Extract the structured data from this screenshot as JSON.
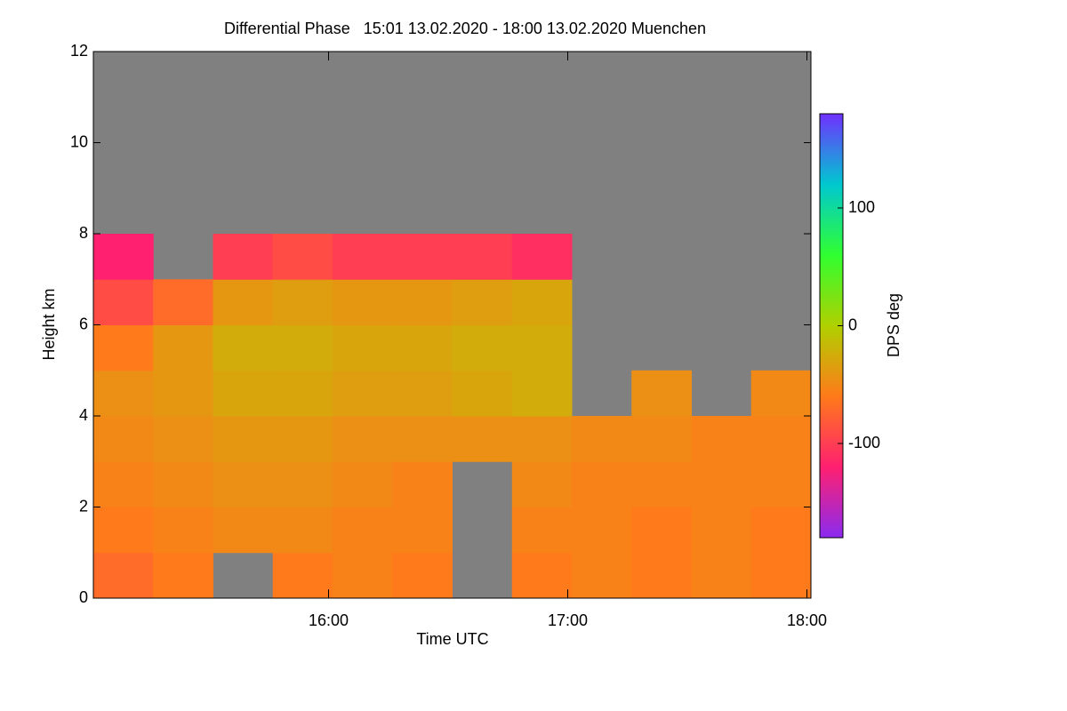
{
  "chart_data": {
    "type": "heatmap",
    "title": "Differential Phase   15:01 13.02.2020 - 18:00 13.02.2020 Muenchen",
    "xlabel": "Time UTC",
    "ylabel": "Height km",
    "colorbar_label": "DPS deg",
    "xlim": [
      15.0167,
      18.0167
    ],
    "xticks": [
      {
        "value": 16,
        "label": "16:00"
      },
      {
        "value": 17,
        "label": "17:00"
      },
      {
        "value": 18,
        "label": "18:00"
      }
    ],
    "ylim": [
      0,
      12
    ],
    "yticks": [
      0,
      2,
      4,
      6,
      8,
      10,
      12
    ],
    "clim": [
      -180,
      180
    ],
    "cticks": [
      100,
      0,
      -100
    ],
    "colorscale": [
      "#8a2bf0",
      "#ff2070",
      "#ff7a1a",
      "#b0d000",
      "#30ff30",
      "#00c8d0",
      "#7030ff"
    ],
    "missing_color": "#808080",
    "xbins": [
      15.0167,
      15.2667,
      15.5167,
      15.7667,
      16.0167,
      16.2667,
      16.5167,
      16.7667,
      17.0167,
      17.2667,
      17.5167,
      17.7667,
      18.0167
    ],
    "ybins": [
      0,
      1,
      2,
      3,
      4,
      5,
      6,
      7,
      8,
      9,
      10,
      11,
      12
    ],
    "z": [
      [
        -70,
        -60,
        null,
        -60,
        -55,
        -60,
        null,
        -60,
        -55,
        -60,
        -55,
        -60
      ],
      [
        -60,
        -55,
        -50,
        -50,
        -55,
        -55,
        null,
        -55,
        -55,
        -60,
        -55,
        -60
      ],
      [
        -55,
        -50,
        -45,
        -45,
        -50,
        -55,
        null,
        -50,
        -55,
        -55,
        -55,
        -55
      ],
      [
        -50,
        -45,
        -40,
        -40,
        -45,
        -45,
        -45,
        -45,
        -50,
        -50,
        -55,
        -55
      ],
      [
        -45,
        -40,
        -30,
        -30,
        -35,
        -35,
        -30,
        -25,
        null,
        -45,
        null,
        -50
      ],
      [
        -60,
        -40,
        -25,
        -25,
        -30,
        -30,
        -25,
        -25,
        null,
        null,
        null,
        null
      ],
      [
        -90,
        -70,
        -40,
        -35,
        -40,
        -40,
        -35,
        -30,
        null,
        null,
        null,
        null
      ],
      [
        -120,
        null,
        -100,
        -90,
        -100,
        -100,
        -100,
        -110,
        null,
        null,
        null,
        null
      ],
      [
        null,
        null,
        null,
        null,
        null,
        null,
        null,
        null,
        null,
        null,
        null,
        null
      ],
      [
        null,
        null,
        null,
        null,
        null,
        null,
        null,
        null,
        null,
        null,
        null,
        null
      ],
      [
        null,
        null,
        null,
        null,
        null,
        null,
        null,
        null,
        null,
        null,
        null,
        null
      ],
      [
        null,
        null,
        null,
        null,
        null,
        null,
        null,
        null,
        null,
        null,
        null,
        null
      ]
    ]
  }
}
